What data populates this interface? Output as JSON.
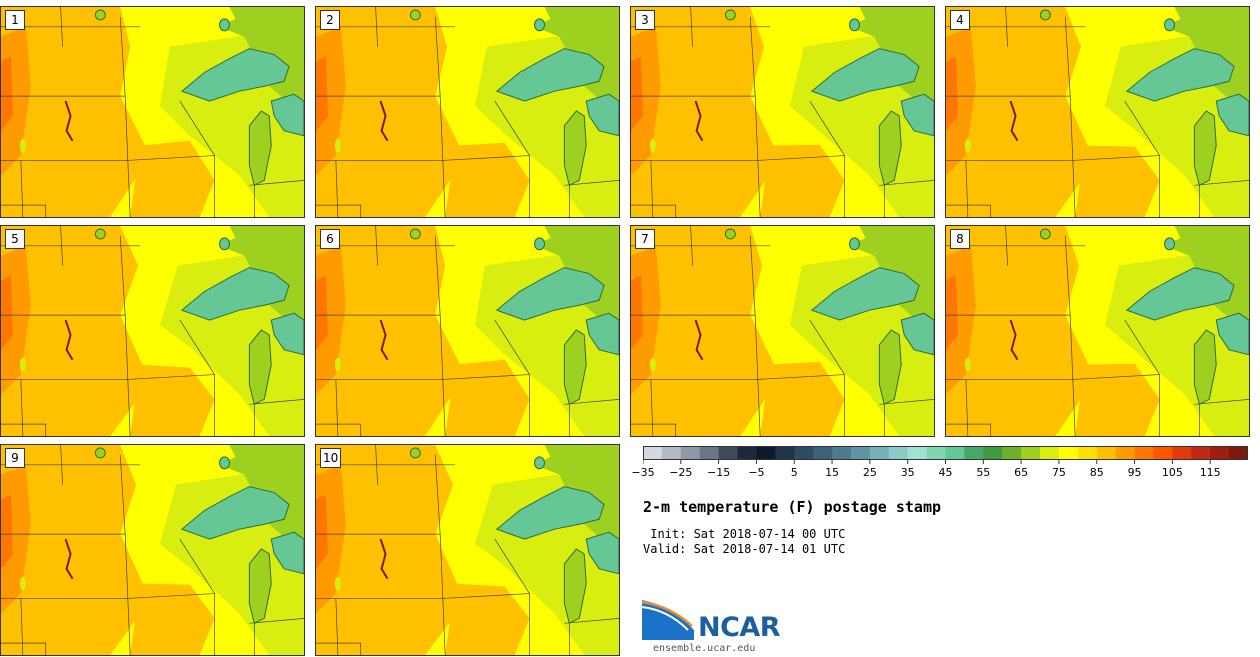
{
  "panels": [
    {
      "label": "1"
    },
    {
      "label": "2"
    },
    {
      "label": "3"
    },
    {
      "label": "4"
    },
    {
      "label": "5"
    },
    {
      "label": "6"
    },
    {
      "label": "7"
    },
    {
      "label": "8"
    },
    {
      "label": "9"
    },
    {
      "label": "10"
    }
  ],
  "colorbar": {
    "colors": [
      "#d4d9e0",
      "#b3bac4",
      "#8e98a6",
      "#6b7787",
      "#3f4a5a",
      "#1e2838",
      "#0d1a2c",
      "#20344a",
      "#2f4b62",
      "#3d6379",
      "#4d7b8f",
      "#5f94a5",
      "#76b0b9",
      "#8dcbc9",
      "#9fe2d6",
      "#7fd6b0",
      "#64c795",
      "#46a86b",
      "#3f9a40",
      "#6db02a",
      "#9ed11f",
      "#d8ee10",
      "#ffff00",
      "#ffe000",
      "#ffc000",
      "#ff9a00",
      "#ff7700",
      "#ff5500",
      "#e13a0c",
      "#c02a10",
      "#9e1e10",
      "#7a1a0f"
    ],
    "tick_labels": [
      "−35",
      "−25",
      "−15",
      "−5",
      "5",
      "15",
      "25",
      "35",
      "45",
      "55",
      "65",
      "75",
      "85",
      "95",
      "105",
      "115"
    ]
  },
  "title": "2-m temperature (F) postage stamp",
  "init": " Init: Sat 2018-07-14 00 UTC",
  "valid": "Valid: Sat 2018-07-14 01 UTC",
  "logo": {
    "name": "NCAR",
    "url": "ensemble.ucar.edu"
  }
}
